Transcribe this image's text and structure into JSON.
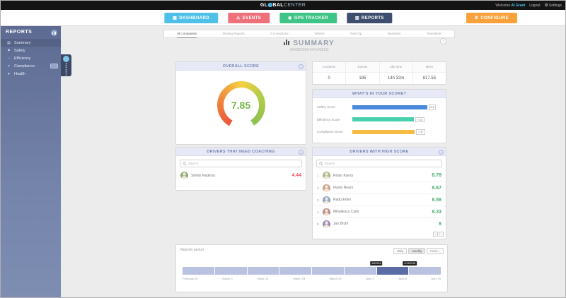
{
  "colors": {
    "dashboard_btn": "#4fc1e9",
    "events_btn": "#ed707a",
    "gps_btn": "#3ec487",
    "reports_btn": "#3f4e6e",
    "configure_btn": "#f9a23c",
    "overall_score_green": "#7ab648",
    "coaching_red": "#ed5565",
    "high_score_green": "#45ad74",
    "timeline_selected": "#5c6ca4"
  },
  "topbar": {
    "logo_pre": "GL",
    "logo_mid": "BAL",
    "logo_suffix": "CENTER",
    "welcome": "Welcome",
    "username": "AI Grant",
    "logout": "Logout",
    "settings": "Settings"
  },
  "nav": {
    "dashboard": "DASHBOARD",
    "events": "EVENTS",
    "gps_tracker": "GPS TRACKER",
    "reports": "REPORTS",
    "configure": "CONFIGURE"
  },
  "sidebar": {
    "title": "REPORTS",
    "flyout_label": "REPORTS",
    "items": [
      {
        "label": "Summary"
      },
      {
        "label": "Safety"
      },
      {
        "label": "Efficiency"
      },
      {
        "label": "Compliance"
      },
      {
        "label": "Health"
      }
    ]
  },
  "tabs": {
    "items": [
      {
        "label": "All companies"
      },
      {
        "label": "Driving Reports"
      },
      {
        "label": "Connections"
      },
      {
        "label": "Vehicle"
      },
      {
        "label": "Fuel Op"
      },
      {
        "label": "Business"
      },
      {
        "label": "Timesheet"
      }
    ]
  },
  "summary": {
    "title": "SUMMARY",
    "date_range": "(04/08/2018-04/14/2018)"
  },
  "overall_score": {
    "title": "OVERALL SCORE",
    "value": "7.85"
  },
  "stats": {
    "items": [
      {
        "label": "Incidents",
        "value": "0"
      },
      {
        "label": "Events",
        "value": "185"
      },
      {
        "label": "Idle time",
        "value": "14h 32m"
      },
      {
        "label": "Miles",
        "value": "817.55"
      }
    ]
  },
  "score_breakdown": {
    "title": "WHAT'S IN YOUR SCORE?",
    "bars": [
      {
        "label": "Safety Score",
        "value": "8.9",
        "color": "#4a89dc",
        "width_pct": "84%"
      },
      {
        "label": "Efficiency Score",
        "value": "7.24",
        "color": "#48cfad",
        "width_pct": "69%"
      },
      {
        "label": "Compliance Score",
        "value": "7.37",
        "color": "#f6bb42",
        "width_pct": "70%"
      }
    ]
  },
  "coaching": {
    "title": "DRIVERS THAT NEED COACHING",
    "search_placeholder": "Search",
    "drivers": [
      {
        "name": "Stefan Radeciu",
        "score": "4.44"
      }
    ]
  },
  "high_score": {
    "title": "DRIVERS WITH HIGH SCORE",
    "search_placeholder": "Search",
    "drivers": [
      {
        "rank": "1.",
        "name": "Rolan Kyess",
        "score": "8.78"
      },
      {
        "rank": "2.",
        "name": "Flavio Reani",
        "score": "8.67"
      },
      {
        "rank": "3.",
        "name": "Radu Erten",
        "score": "8.58"
      },
      {
        "rank": "4.",
        "name": "Mihailescu Calin",
        "score": "8.33"
      },
      {
        "rank": "5.",
        "name": "Jan Bruhl",
        "score": "8"
      }
    ],
    "pager": {
      "prev": "‹",
      "next": "›"
    }
  },
  "reports_period": {
    "title": "Reports period",
    "buttons": [
      {
        "label": "daily"
      },
      {
        "label": "weekly"
      },
      {
        "label": "mont..."
      }
    ],
    "tooltips": {
      "start": "4/8/2018",
      "end": "4/14/2018"
    },
    "axis": [
      {
        "label": "February 25"
      },
      {
        "label": "March 4"
      },
      {
        "label": "March 11"
      },
      {
        "label": "March 18"
      },
      {
        "label": "March 25"
      },
      {
        "label": "April 1"
      },
      {
        "label": "April 8"
      },
      {
        "label": "April 15"
      }
    ]
  }
}
